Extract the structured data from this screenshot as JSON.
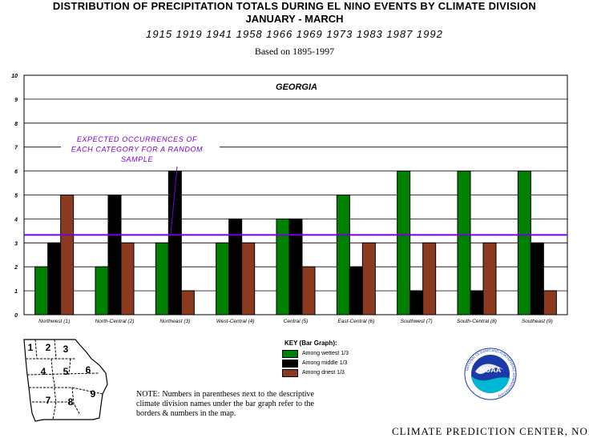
{
  "header": {
    "title_line1": "DISTRIBUTION OF PRECIPITATION TOTALS DURING EL NINO EVENTS BY CLIMATE DIVISION",
    "title_line2": "JANUARY - MARCH",
    "years": "1915 1919 1941 1958 1966 1969 1973 1983 1987 1992",
    "baseline": "Based on 1895-1997"
  },
  "chart_data": {
    "type": "bar",
    "title": "GEORGIA",
    "ylim": [
      0,
      10
    ],
    "yticks": [
      "0",
      "1",
      "2",
      "3",
      "4",
      "5",
      "6",
      "7",
      "8",
      "9",
      "10"
    ],
    "categories": [
      "Northwest (1)",
      "North-Central (2)",
      "Northeast (3)",
      "West-Central (4)",
      "Central (5)",
      "East-Central (6)",
      "Southwest (7)",
      "South-Central (8)",
      "Southeast (9)"
    ],
    "series": [
      {
        "name": "Among wettest 1/3",
        "color": "#008000",
        "values": [
          2,
          2,
          3,
          3,
          4,
          5,
          6,
          6,
          6
        ]
      },
      {
        "name": "Among middle 1/3",
        "color": "#000000",
        "values": [
          3,
          5,
          6,
          4,
          4,
          2,
          1,
          1,
          3
        ]
      },
      {
        "name": "Among driest 1/3",
        "color": "#8b3a1f",
        "values": [
          5,
          3,
          1,
          3,
          2,
          3,
          3,
          3,
          1
        ]
      }
    ],
    "expected_line": {
      "value": 3.33,
      "color": "#7700dd"
    },
    "annotation": [
      "EXPECTED OCCURRENCES OF",
      "EACH CATEGORY FOR A RANDOM",
      "SAMPLE"
    ],
    "grid": true
  },
  "key": {
    "title": "KEY (Bar Graph):",
    "items": [
      {
        "label": "Among wettest 1/3",
        "color": "#008000"
      },
      {
        "label": "Among middle 1/3",
        "color": "#000000"
      },
      {
        "label": "Among driest 1/3",
        "color": "#8b3a1f"
      }
    ]
  },
  "map": {
    "divisions": [
      "1",
      "2",
      "3",
      "4",
      "5",
      "6",
      "7",
      "8",
      "9"
    ]
  },
  "note": "NOTE: Numbers in parentheses next to the descriptive climate division names under the bar graph refer to the borders & numbers in the map.",
  "logo": {
    "text": "NOAA",
    "ring_text": "NATIONAL OCEANIC AND ATMOSPHERIC ADMINISTRATION"
  },
  "footer": {
    "credit": "CLIMATE PREDICTION CENTER, NOAA"
  }
}
